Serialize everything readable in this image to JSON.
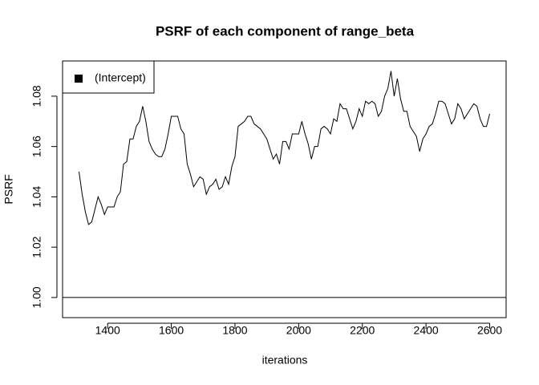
{
  "chart_data": {
    "type": "line",
    "title": "PSRF of each component of range_beta",
    "x_label": "iterations",
    "y_label": "PSRF",
    "x": [
      1310,
      1320,
      1330,
      1340,
      1350,
      1360,
      1370,
      1380,
      1390,
      1400,
      1410,
      1420,
      1430,
      1440,
      1450,
      1460,
      1470,
      1480,
      1490,
      1500,
      1510,
      1520,
      1530,
      1540,
      1550,
      1560,
      1570,
      1580,
      1590,
      1600,
      1610,
      1620,
      1630,
      1640,
      1650,
      1660,
      1670,
      1680,
      1690,
      1700,
      1710,
      1720,
      1730,
      1740,
      1750,
      1760,
      1770,
      1780,
      1790,
      1800,
      1810,
      1820,
      1830,
      1840,
      1850,
      1860,
      1870,
      1880,
      1890,
      1900,
      1910,
      1920,
      1930,
      1940,
      1950,
      1960,
      1970,
      1980,
      1990,
      2000,
      2010,
      2020,
      2030,
      2040,
      2050,
      2060,
      2070,
      2080,
      2090,
      2100,
      2110,
      2120,
      2130,
      2140,
      2150,
      2160,
      2170,
      2180,
      2190,
      2200,
      2210,
      2220,
      2230,
      2240,
      2250,
      2260,
      2270,
      2280,
      2290,
      2300,
      2310,
      2320,
      2330,
      2340,
      2350,
      2360,
      2370,
      2380,
      2390,
      2400,
      2410,
      2420,
      2430,
      2440,
      2450,
      2460,
      2470,
      2480,
      2490,
      2500,
      2510,
      2520,
      2530,
      2540,
      2550,
      2560,
      2570,
      2580,
      2590,
      2600
    ],
    "series": [
      {
        "name": "(Intercept)",
        "color": "#000000",
        "values": [
          1.05,
          1.041,
          1.034,
          1.029,
          1.03,
          1.035,
          1.04,
          1.037,
          1.033,
          1.036,
          1.036,
          1.036,
          1.04,
          1.042,
          1.053,
          1.054,
          1.063,
          1.063,
          1.068,
          1.07,
          1.076,
          1.07,
          1.062,
          1.059,
          1.057,
          1.056,
          1.056,
          1.059,
          1.065,
          1.072,
          1.072,
          1.072,
          1.067,
          1.065,
          1.053,
          1.049,
          1.044,
          1.046,
          1.048,
          1.047,
          1.041,
          1.044,
          1.045,
          1.047,
          1.043,
          1.044,
          1.048,
          1.045,
          1.052,
          1.056,
          1.068,
          1.069,
          1.07,
          1.072,
          1.072,
          1.069,
          1.068,
          1.067,
          1.065,
          1.063,
          1.059,
          1.055,
          1.057,
          1.053,
          1.062,
          1.062,
          1.059,
          1.065,
          1.065,
          1.065,
          1.07,
          1.065,
          1.061,
          1.055,
          1.06,
          1.06,
          1.067,
          1.068,
          1.067,
          1.065,
          1.071,
          1.07,
          1.077,
          1.075,
          1.075,
          1.071,
          1.067,
          1.07,
          1.075,
          1.072,
          1.078,
          1.077,
          1.078,
          1.077,
          1.072,
          1.074,
          1.08,
          1.083,
          1.09,
          1.08,
          1.087,
          1.079,
          1.074,
          1.074,
          1.068,
          1.066,
          1.064,
          1.058,
          1.063,
          1.065,
          1.068,
          1.069,
          1.073,
          1.078,
          1.078,
          1.077,
          1.073,
          1.069,
          1.071,
          1.077,
          1.075,
          1.071,
          1.073,
          1.075,
          1.077,
          1.076,
          1.071,
          1.068,
          1.068,
          1.073
        ]
      }
    ],
    "reference_line": 1,
    "xlim": [
      1258.4,
      2651.6
    ],
    "ylim": [
      0.992,
      1.094
    ],
    "xticks": [
      1400,
      1600,
      1800,
      2000,
      2200,
      2400,
      2600
    ],
    "yticks": [
      {
        "value": 1.0,
        "label": "1.00"
      },
      {
        "value": 1.02,
        "label": "1.02"
      },
      {
        "value": 1.04,
        "label": "1.04"
      },
      {
        "value": 1.06,
        "label": "1.06"
      },
      {
        "value": 1.08,
        "label": "1.08"
      }
    ],
    "legend_position": "topleft"
  }
}
